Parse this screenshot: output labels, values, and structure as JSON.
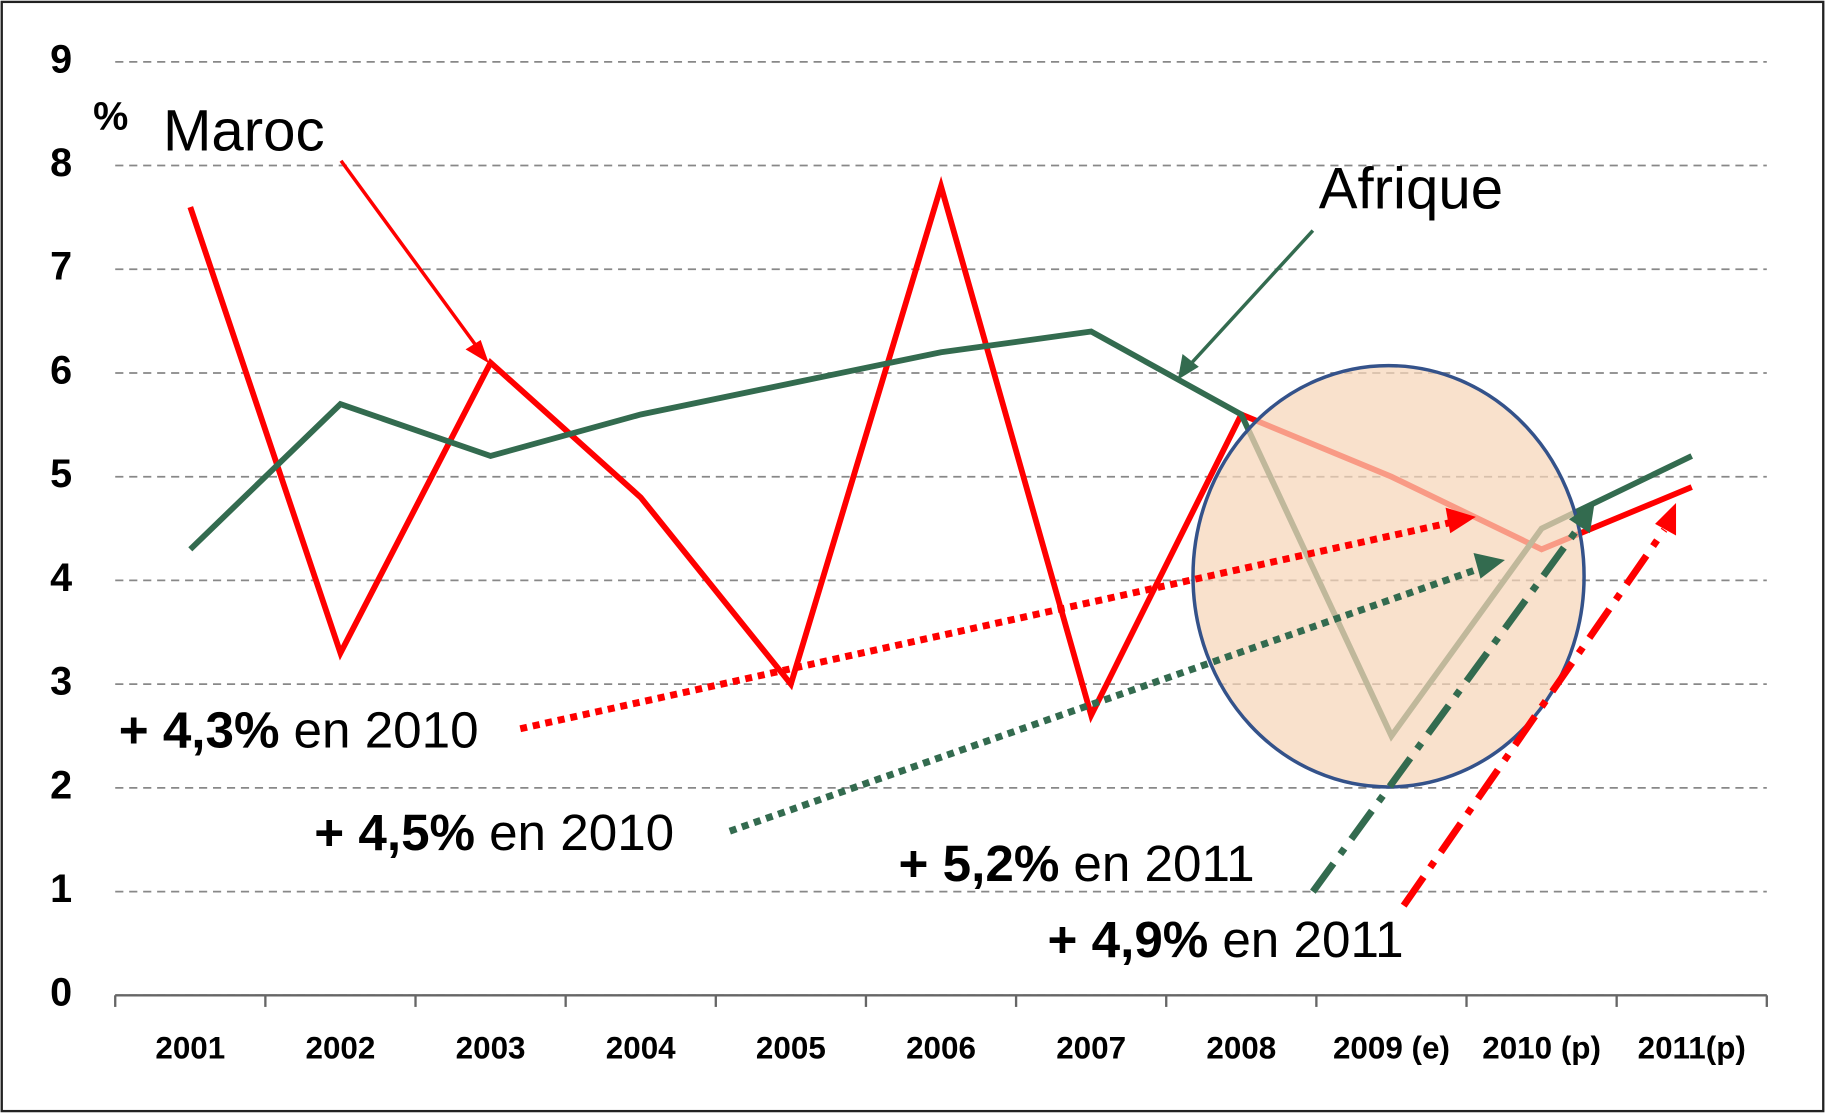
{
  "chart_data": {
    "type": "line",
    "unit": "%",
    "categories": [
      "2001",
      "2002",
      "2003",
      "2004",
      "2005",
      "2006",
      "2007",
      "2008",
      "2009 (e)",
      "2010 (p)",
      "2011(p)"
    ],
    "series": [
      {
        "name": "Maroc",
        "color": "#ff0000",
        "values": [
          7.6,
          3.3,
          6.1,
          4.8,
          3.0,
          7.8,
          2.7,
          5.6,
          5.0,
          4.3,
          4.9
        ]
      },
      {
        "name": "Afrique",
        "color": "#336b4f",
        "values": [
          4.3,
          5.7,
          5.2,
          5.6,
          5.9,
          6.2,
          6.4,
          5.6,
          2.5,
          4.5,
          5.2
        ]
      }
    ],
    "ylim": [
      0,
      9
    ],
    "yticks": [
      0,
      1,
      2,
      3,
      4,
      5,
      6,
      7,
      8,
      9
    ],
    "grid": true,
    "annotations": [
      {
        "value": "+ 4,3%",
        "text": "en 2010"
      },
      {
        "value": "+ 4,5%",
        "text": "en 2010"
      },
      {
        "value": "+ 5,2%",
        "text": "en 2011"
      },
      {
        "value": "+ 4,9%",
        "text": "en 2011"
      }
    ]
  }
}
